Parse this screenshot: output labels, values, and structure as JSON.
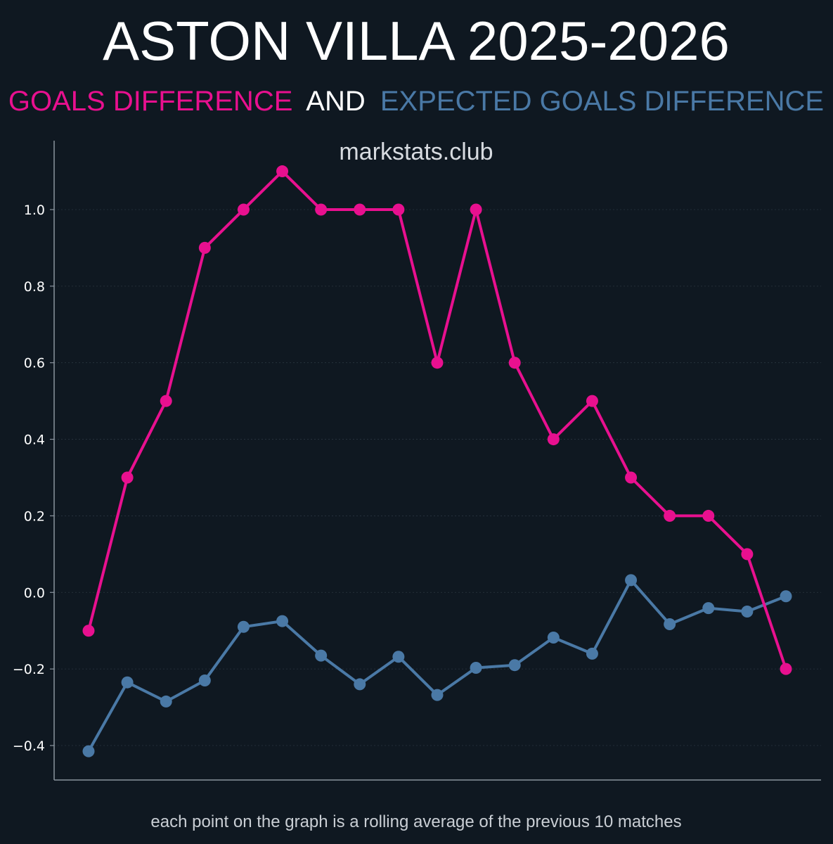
{
  "title": "ASTON VILLA 2025-2026",
  "subtitle": {
    "part1": "GOALS DIFFERENCE",
    "part2": "AND",
    "part3": "EXPECTED GOALS DIFFERENCE"
  },
  "watermark": "markstats.club",
  "footnote": "each point on the graph is a rolling average of the previous 10 matches",
  "colors": {
    "background": "#0f1821",
    "goals": "#e8108f",
    "xg": "#4a79a6",
    "text": "#ffffff",
    "axis": "#8a949e",
    "grid": "#2a3540"
  },
  "chart_data": {
    "type": "line",
    "title": "ASTON VILLA 2025-2026",
    "xlabel": "",
    "ylabel": "",
    "x": [
      1,
      2,
      3,
      4,
      5,
      6,
      7,
      8,
      9,
      10,
      11,
      12,
      13,
      14,
      15,
      16,
      17,
      18,
      19
    ],
    "ylim": [
      -0.49,
      1.18
    ],
    "yticks": [
      -0.4,
      -0.2,
      0.0,
      0.2,
      0.4,
      0.6,
      0.8,
      1.0
    ],
    "ytick_labels": [
      "−0.4",
      "−0.2",
      "0.0",
      "0.2",
      "0.4",
      "0.6",
      "0.8",
      "1.0"
    ],
    "grid": true,
    "series": [
      {
        "key": "goals",
        "values": [
          -0.1,
          0.3,
          0.5,
          0.9,
          1.0,
          1.1,
          1.0,
          1.0,
          1.0,
          0.6,
          1.0,
          0.6,
          0.4,
          0.5,
          0.3,
          0.2,
          0.2,
          0.1,
          -0.2
        ]
      },
      {
        "key": "xg",
        "values": [
          -0.415,
          -0.235,
          -0.285,
          -0.23,
          -0.09,
          -0.075,
          -0.165,
          -0.24,
          -0.168,
          -0.268,
          -0.197,
          -0.19,
          -0.118,
          -0.16,
          0.032,
          -0.083,
          -0.041,
          -0.05,
          -0.01
        ]
      }
    ]
  }
}
